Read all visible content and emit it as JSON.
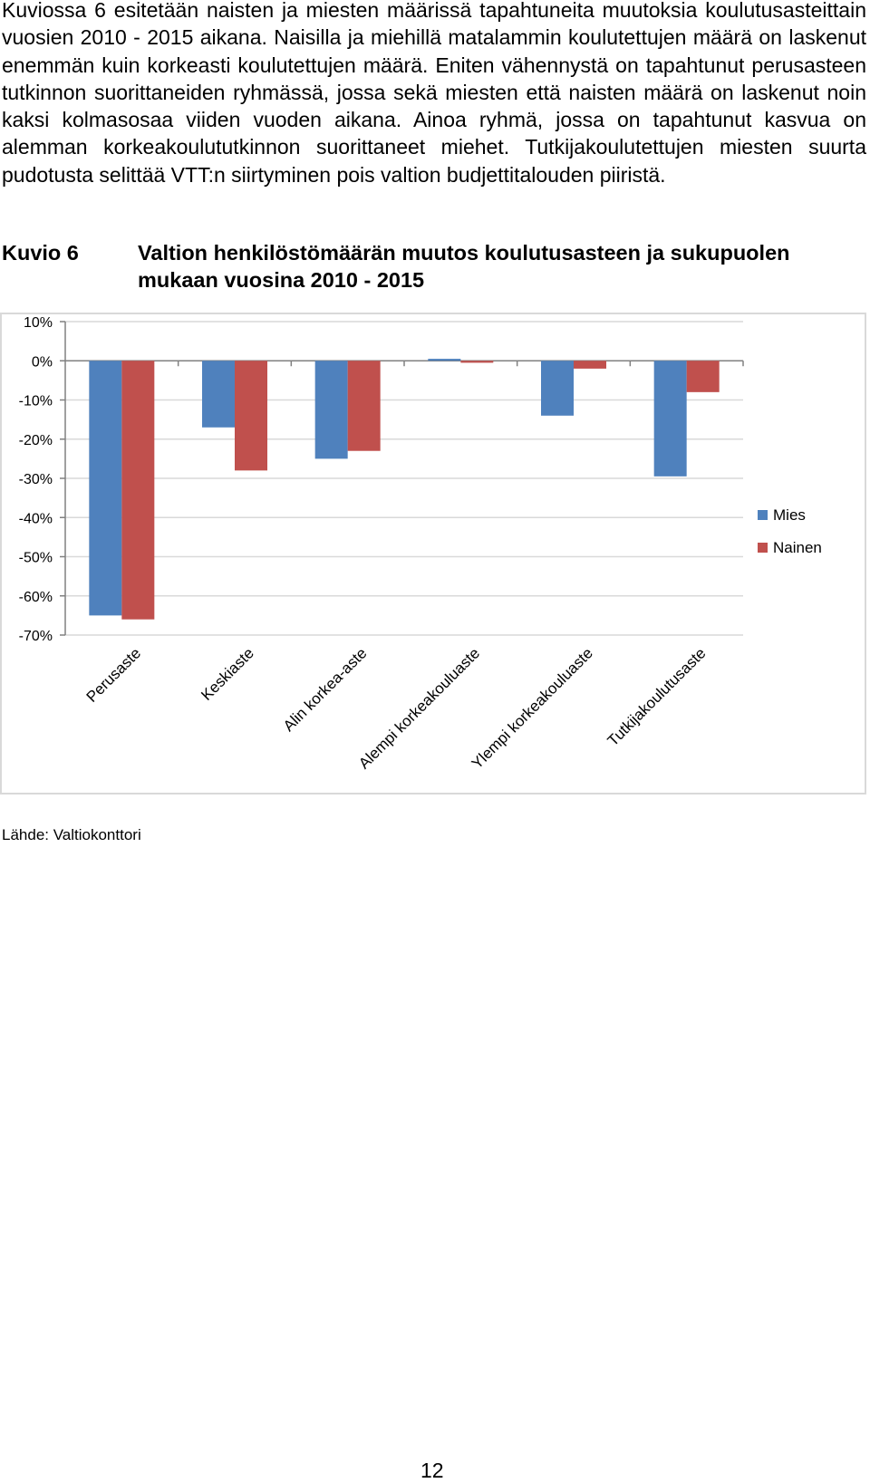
{
  "paragraph": "Kuviossa 6 esitetään naisten ja miesten määrissä tapahtuneita muutoksia koulutusasteittain vuosien 2010 - 2015 aikana. Naisilla ja miehillä matalammin koulutettujen määrä on laskenut enemmän kuin korkeasti koulutettujen määrä. Eniten vähennystä on tapahtunut perusasteen tutkinnon suorittaneiden ryhmässä, jossa sekä miesten että naisten määrä on laskenut noin kaksi kolmasosaa viiden vuoden aikana. Ainoa ryhmä, jossa on tapahtunut kasvua on alemman korkeakoulututkinnon suorittaneet miehet. Tutkijakoulutettujen miesten suurta pudotusta selittää VTT:n siirtyminen pois valtion budjettitalouden piiristä.",
  "figure": {
    "number": "Kuvio 6",
    "title": "Valtion henkilöstömäärän muutos koulutusasteen ja sukupuolen mukaan vuosina 2010 - 2015"
  },
  "source": "Lähde: Valtiokonttori",
  "page_number": "12",
  "chart_data": {
    "type": "bar",
    "title": "",
    "xlabel": "",
    "ylabel": "",
    "categories": [
      "Perusaste",
      "Keskiaste",
      "Alin korkea-aste",
      "Alempi korkeakouluaste",
      "Ylempi korkeakouluaste",
      "Tutkijakoulutusaste"
    ],
    "series": [
      {
        "name": "Mies",
        "color": "#4f81bd",
        "values": [
          -65,
          -17,
          -25,
          0.5,
          -14,
          -29.5
        ]
      },
      {
        "name": "Nainen",
        "color": "#c0504d",
        "values": [
          -66,
          -28,
          -23,
          -0.5,
          -2,
          -8
        ]
      }
    ],
    "ylim": [
      -70,
      10
    ],
    "yticks": [
      10,
      0,
      -10,
      -20,
      -30,
      -40,
      -50,
      -60,
      -70
    ],
    "ytick_labels": [
      "10%",
      "0%",
      "-10%",
      "-20%",
      "-30%",
      "-40%",
      "-50%",
      "-60%",
      "-70%"
    ],
    "grid": true,
    "legend_position": "right"
  }
}
